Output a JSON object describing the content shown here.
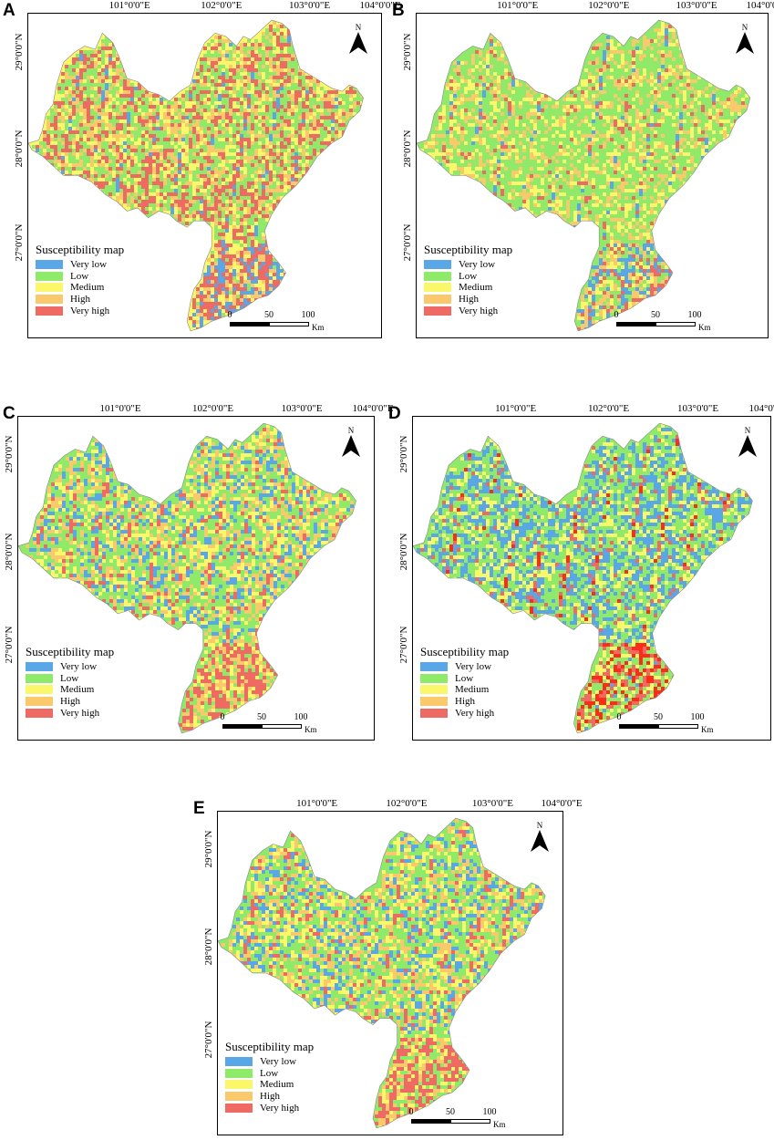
{
  "panels": [
    {
      "id": "A",
      "letter": "A"
    },
    {
      "id": "B",
      "letter": "B"
    },
    {
      "id": "C",
      "letter": "C"
    },
    {
      "id": "D",
      "letter": "D"
    },
    {
      "id": "E",
      "letter": "E"
    }
  ],
  "longitude_labels": [
    "101°0'0\"E",
    "102°0'0\"E",
    "103°0'0\"E",
    "104°0'0\"E"
  ],
  "latitude_labels": [
    "29°0'0\"N",
    "28°0'0\"N",
    "27°0'0\"N"
  ],
  "north_arrow": {
    "letter": "N"
  },
  "legend": {
    "title": "Susceptibility map",
    "classes": [
      {
        "label": "Very low",
        "color": "#5aa7e8"
      },
      {
        "label": "Low",
        "color": "#8fea6a"
      },
      {
        "label": "Medium",
        "color": "#fbf76a"
      },
      {
        "label": "High",
        "color": "#f9c96b"
      },
      {
        "label": "Very high",
        "color": "#f06a64"
      }
    ]
  },
  "scale_bar": {
    "ticks": [
      "0",
      "50",
      "100"
    ],
    "unit": "Km"
  },
  "map_palettes": {
    "A": [
      "#8fea6a",
      "#8fea6a",
      "#fbf76a",
      "#f9c96b",
      "#f06a64",
      "#f06a64",
      "#5aa7e8"
    ],
    "B": [
      "#8fea6a",
      "#8fea6a",
      "#8fea6a",
      "#fbf76a",
      "#f9c96b",
      "#f06a64",
      "#5aa7e8"
    ],
    "C": [
      "#5aa7e8",
      "#8fea6a",
      "#8fea6a",
      "#fbf76a",
      "#f9c96b",
      "#f06a64",
      "#f06a64"
    ],
    "D": [
      "#5aa7e8",
      "#5aa7e8",
      "#8fea6a",
      "#8fea6a",
      "#fbf76a",
      "#f06a64",
      "#ff2a1a"
    ],
    "E": [
      "#5aa7e8",
      "#8fea6a",
      "#8fea6a",
      "#fbf76a",
      "#f9c96b",
      "#f06a64",
      "#f06a64"
    ]
  }
}
